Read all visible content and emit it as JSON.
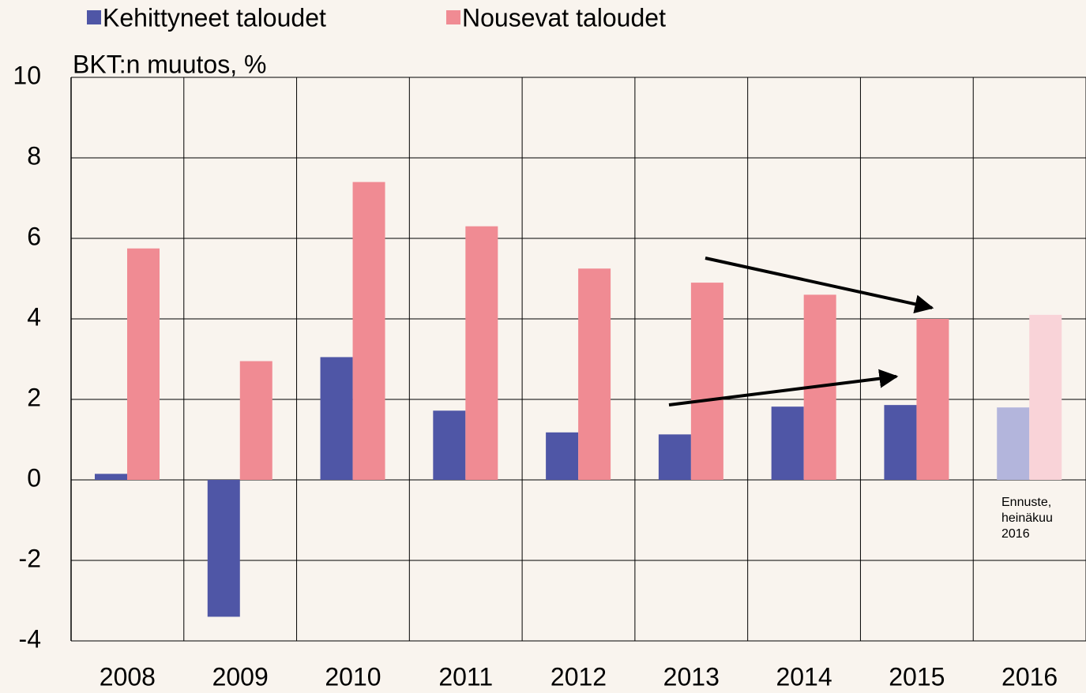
{
  "chart_data": {
    "type": "bar",
    "y_label": "BKT:n muutos, %",
    "categories": [
      "2008",
      "2009",
      "2010",
      "2011",
      "2012",
      "2013",
      "2014",
      "2015",
      "2016"
    ],
    "series": [
      {
        "name": "Kehittyneet taloudet",
        "color": "#4f56a6",
        "colors": [
          "#4f56a6",
          "#4f56a6",
          "#4f56a6",
          "#4f56a6",
          "#4f56a6",
          "#4f56a6",
          "#4f56a6",
          "#4f56a6",
          "#b3b5dc"
        ],
        "values": [
          0.15,
          -3.4,
          3.05,
          1.72,
          1.18,
          1.13,
          1.82,
          1.86,
          1.8
        ]
      },
      {
        "name": "Nousevat taloudet",
        "color": "#f08b93",
        "colors": [
          "#f08b93",
          "#f08b93",
          "#f08b93",
          "#f08b93",
          "#f08b93",
          "#f08b93",
          "#f08b93",
          "#f08b93",
          "#f9d3d8"
        ],
        "values": [
          5.75,
          2.95,
          7.4,
          6.3,
          5.25,
          4.9,
          4.6,
          4.0,
          4.1
        ]
      }
    ],
    "annotation": [
      "Ennuste,",
      "heinäkuu",
      "2016"
    ],
    "ylim": [
      -4,
      10
    ],
    "yticks": [
      -4,
      -2,
      0,
      2,
      4,
      6,
      8,
      10
    ],
    "grid": true,
    "legend": "top"
  }
}
